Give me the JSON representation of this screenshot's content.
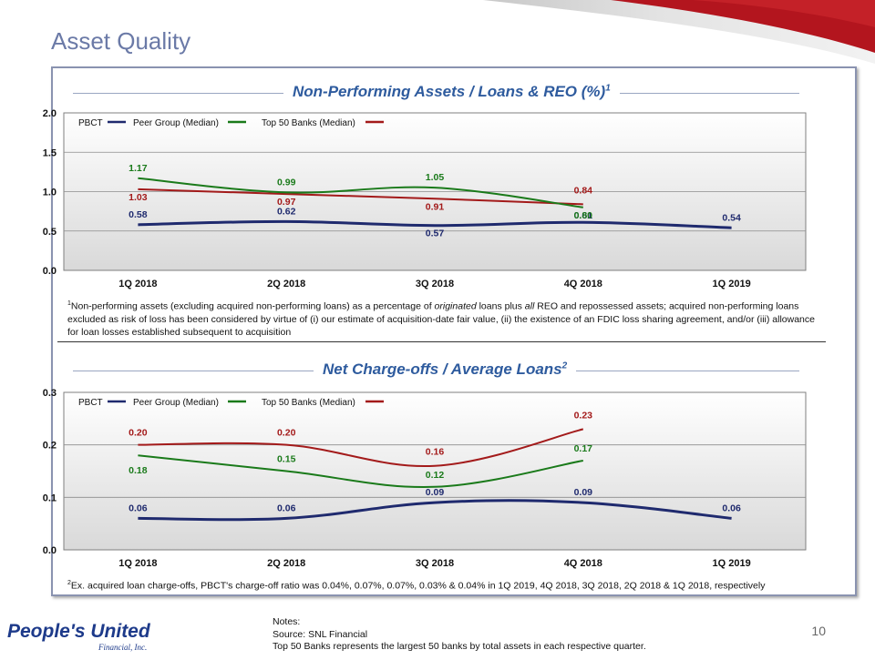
{
  "slide": {
    "title": "Asset Quality",
    "page_number": "10",
    "logo_text": "People's United",
    "logo_sub": "Financial, Inc."
  },
  "colors": {
    "pbct": "#1f2a6e",
    "peer": "#1a7a1a",
    "top50": "#a31a1a",
    "accent": "#2e5b9e"
  },
  "charts": {
    "npa": {
      "title": "Non-Performing Assets / Loans & REO (%)",
      "title_sup": "1",
      "footnote_sup": "1",
      "footnote_parts": [
        "Non-performing assets (excluding acquired non-performing loans) as a percentage of ",
        "originated",
        " loans plus ",
        "all",
        " REO and repossessed assets; acquired non-performing loans excluded as risk of loss has been considered by virtue of (i) our estimate of acquisition-date fair value, (ii) the existence of an FDIC loss sharing agreement, and/or (iii) allowance for loan losses established subsequent to acquisition"
      ]
    },
    "nco": {
      "title": "Net Charge-offs / Average Loans",
      "title_sup": "2",
      "footnote_sup": "2",
      "footnote": "Ex. acquired loan charge-offs, PBCT's charge-off ratio was 0.04%, 0.07%, 0.07%, 0.03% & 0.04% in 1Q 2019, 4Q 2018, 3Q 2018, 2Q 2018 & 1Q 2018, respectively"
    }
  },
  "chart_data": [
    {
      "type": "line",
      "title": "Non-Performing Assets / Loans & REO (%)",
      "categories": [
        "1Q 2018",
        "2Q 2018",
        "3Q 2018",
        "4Q 2018",
        "1Q 2019"
      ],
      "ylim": [
        0,
        2.0
      ],
      "yticks": [
        "0.0",
        "0.5",
        "1.0",
        "1.5",
        "2.0"
      ],
      "ytick_values": [
        0,
        0.5,
        1.0,
        1.5,
        2.0
      ],
      "grid": true,
      "legend": "top-left",
      "series": [
        {
          "name": "PBCT",
          "color": "#1f2a6e",
          "values": [
            0.58,
            0.62,
            0.57,
            0.61,
            0.54
          ],
          "labels": [
            "0.58",
            "0.62",
            "0.57",
            "0.61",
            "0.54"
          ]
        },
        {
          "name": "Peer Group (Median)",
          "color": "#1a7a1a",
          "values": [
            1.17,
            0.99,
            1.05,
            0.8,
            null
          ],
          "labels": [
            "1.17",
            "0.99",
            "1.05",
            "0.80",
            null
          ]
        },
        {
          "name": "Top 50 Banks (Median)",
          "color": "#a31a1a",
          "values": [
            1.03,
            0.97,
            0.91,
            0.84,
            null
          ],
          "labels": [
            "1.03",
            "0.97",
            "0.91",
            "0.84",
            null
          ]
        }
      ]
    },
    {
      "type": "line",
      "title": "Net Charge-offs / Average Loans",
      "categories": [
        "1Q 2018",
        "2Q 2018",
        "3Q 2018",
        "4Q 2018",
        "1Q 2019"
      ],
      "ylim": [
        0,
        0.3
      ],
      "yticks": [
        "0.0",
        "0.1",
        "0.2",
        "0.3"
      ],
      "ytick_values": [
        0,
        0.1,
        0.2,
        0.3
      ],
      "grid": true,
      "legend": "top-left",
      "series": [
        {
          "name": "PBCT",
          "color": "#1f2a6e",
          "values": [
            0.06,
            0.06,
            0.09,
            0.09,
            0.06
          ],
          "labels": [
            "0.06",
            "0.06",
            "0.09",
            "0.09",
            "0.06"
          ]
        },
        {
          "name": "Peer Group (Median)",
          "color": "#1a7a1a",
          "values": [
            0.18,
            0.15,
            0.12,
            0.17,
            null
          ],
          "labels": [
            "0.18",
            "0.15",
            "0.12",
            "0.17",
            null
          ]
        },
        {
          "name": "Top 50 Banks (Median)",
          "color": "#a31a1a",
          "values": [
            0.2,
            0.2,
            0.16,
            0.23,
            null
          ],
          "labels": [
            "0.20",
            "0.20",
            "0.16",
            "0.23",
            null
          ]
        }
      ]
    }
  ],
  "notes": {
    "heading": "Notes:",
    "source": "Source: SNL Financial",
    "top50": "Top 50 Banks represents the largest 50 banks by total assets in each respective quarter."
  }
}
